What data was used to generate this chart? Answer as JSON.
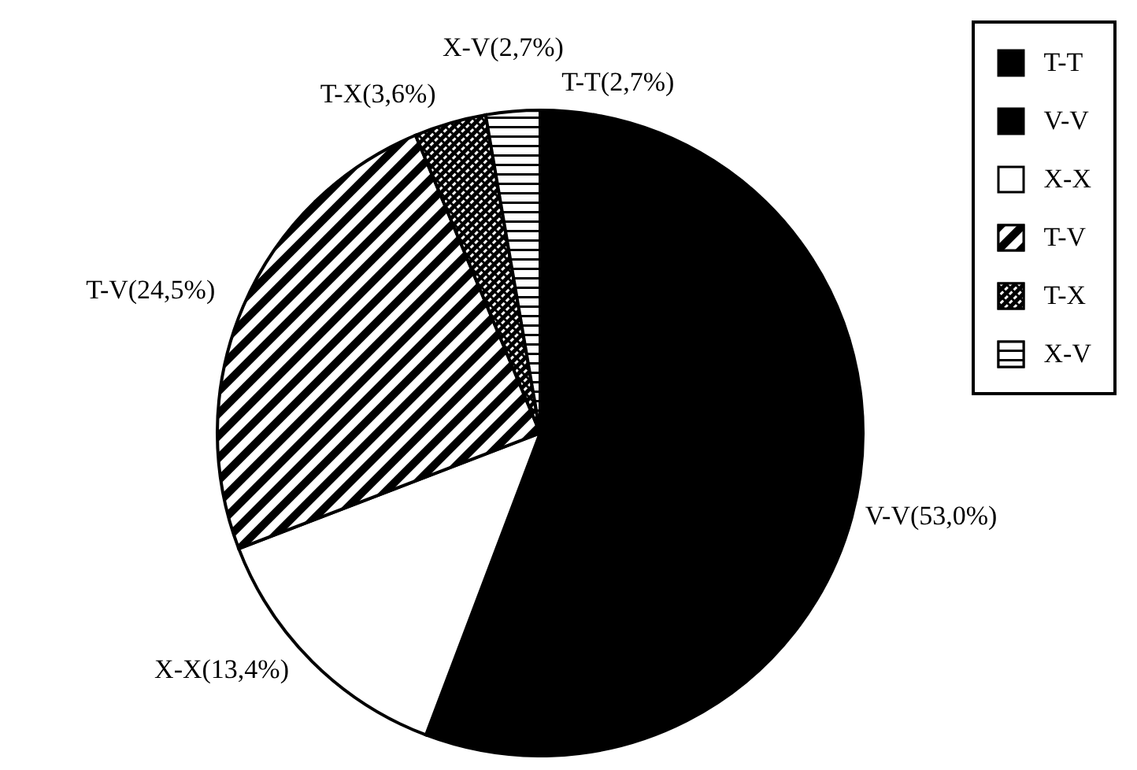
{
  "chart_data": {
    "type": "pie",
    "categories": [
      "T-T",
      "V-V",
      "X-X",
      "T-V",
      "T-X",
      "X-V"
    ],
    "values": [
      2.7,
      53.0,
      13.4,
      24.5,
      3.6,
      2.7
    ],
    "value_labels": [
      "(2,7%)",
      "(53,0%)",
      "(13,4%)",
      "(24,5%)",
      "(3,6%)",
      "(2,7%)"
    ],
    "colors": [
      "#000000",
      "#000000",
      "#ffffff",
      "#000000",
      "#000000",
      "#000000"
    ],
    "legend": "top right"
  }
}
